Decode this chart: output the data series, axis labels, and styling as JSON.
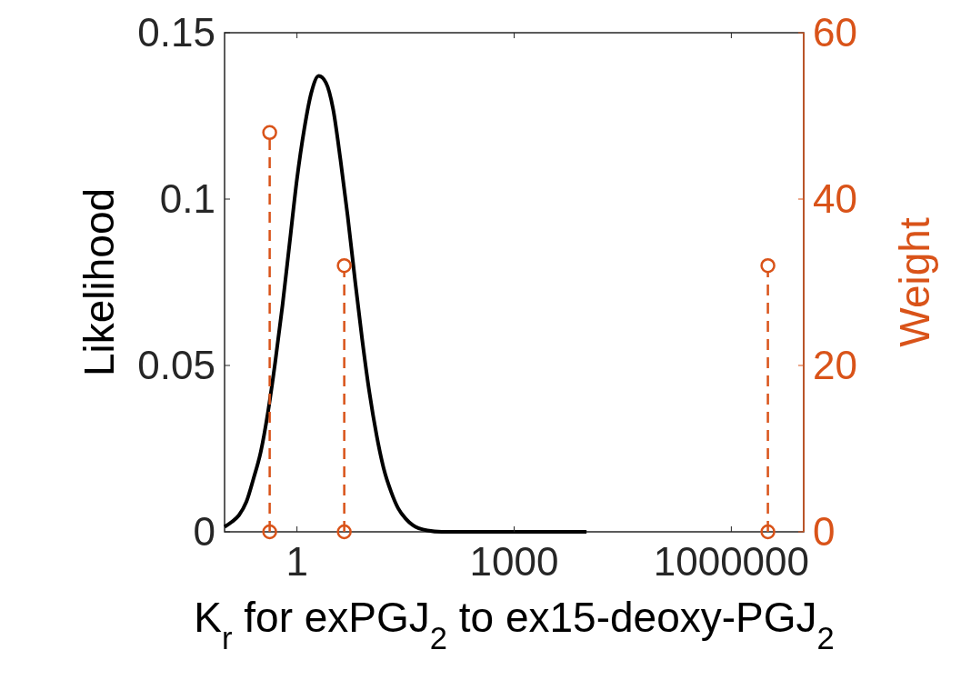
{
  "chart_data": {
    "type": "line",
    "xlabel": "K$_{r}$ for exPGJ$_{2}$ to ex15-deoxy-PGJ$_{2}$",
    "ylabel": "Likelihood",
    "y2label": "Weight",
    "log": "x",
    "xlim": [
      0.1,
      10000000
    ],
    "xticks": [
      1,
      1000,
      1000000
    ],
    "ylim": [
      0,
      0.15
    ],
    "yticks": [
      0,
      0.05,
      0.1,
      0.15
    ],
    "y2lim": [
      0,
      60
    ],
    "y2ticks": [
      0,
      20,
      40,
      60
    ],
    "grid": false,
    "series": [
      {
        "type": "line",
        "color": "#000000",
        "line_style": "solid",
        "marker": "none",
        "x": [
          0.1,
          0.126,
          0.158,
          0.2,
          0.251,
          0.316,
          0.398,
          0.501,
          0.631,
          0.794,
          1,
          1.26,
          1.58,
          2.0,
          2.51,
          3.16,
          3.98,
          5.01,
          6.31,
          7.94,
          10,
          12.6,
          15.8,
          20,
          25.1,
          31.6,
          39.8,
          63.1,
          100,
          1000,
          10000
        ],
        "values": [
          0.0015,
          0.003,
          0.005,
          0.009,
          0.016,
          0.024,
          0.036,
          0.051,
          0.068,
          0.087,
          0.106,
          0.121,
          0.132,
          0.137,
          0.135,
          0.127,
          0.112,
          0.095,
          0.076,
          0.058,
          0.042,
          0.029,
          0.019,
          0.012,
          0.007,
          0.004,
          0.002,
          0.0004,
          0,
          0,
          0
        ]
      },
      {
        "type": "lollipop",
        "axis": "y2",
        "color": "#d95319",
        "line_style": "dashed",
        "marker": "circle",
        "x": [
          0.42,
          4.5,
          3200000
        ],
        "values": [
          48,
          32,
          32
        ]
      },
      {
        "type": "scatter",
        "axis": "y2",
        "color": "#d95319",
        "marker": "circle",
        "x": [
          0.42,
          4.5,
          3200000
        ],
        "values": [
          0,
          0,
          0
        ]
      }
    ]
  }
}
